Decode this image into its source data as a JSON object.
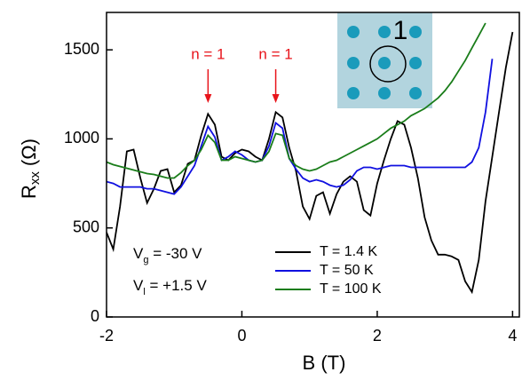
{
  "chart_data": {
    "type": "line",
    "x_label": "B (T)",
    "y_label": "R",
    "y_label_sub": "xx",
    "y_label_unit": "(Ω)",
    "x": [
      -2.0,
      -1.9,
      -1.8,
      -1.7,
      -1.6,
      -1.5,
      -1.4,
      -1.3,
      -1.2,
      -1.1,
      -1.0,
      -0.9,
      -0.8,
      -0.7,
      -0.6,
      -0.5,
      -0.4,
      -0.3,
      -0.2,
      -0.1,
      0.0,
      0.1,
      0.2,
      0.3,
      0.4,
      0.5,
      0.6,
      0.7,
      0.8,
      0.9,
      1.0,
      1.1,
      1.2,
      1.3,
      1.4,
      1.5,
      1.6,
      1.7,
      1.8,
      1.9,
      2.0,
      2.1,
      2.2,
      2.3,
      2.4,
      2.5,
      2.6,
      2.7,
      2.8,
      2.9,
      3.0,
      3.1,
      3.2,
      3.3,
      3.4,
      3.5,
      3.6,
      3.7,
      3.8,
      3.9,
      4.0,
      4.1
    ],
    "series": [
      {
        "name": "T = 1.4 K",
        "color": "#000000",
        "values": [
          475,
          380,
          620,
          930,
          940,
          780,
          640,
          720,
          820,
          830,
          700,
          740,
          860,
          880,
          1020,
          1140,
          1080,
          900,
          880,
          920,
          940,
          930,
          900,
          880,
          1000,
          1150,
          1120,
          950,
          820,
          620,
          550,
          680,
          700,
          580,
          690,
          760,
          790,
          760,
          600,
          570,
          750,
          880,
          1000,
          1100,
          1080,
          950,
          780,
          560,
          430,
          350,
          350,
          340,
          320,
          200,
          140,
          320,
          650,
          900,
          1150,
          1400,
          1600,
          null
        ]
      },
      {
        "name": "T = 50 K",
        "color": "#1010e0",
        "values": [
          760,
          750,
          730,
          730,
          730,
          730,
          720,
          720,
          710,
          700,
          690,
          730,
          790,
          850,
          960,
          1070,
          1010,
          880,
          900,
          930,
          910,
          880,
          870,
          880,
          960,
          1090,
          1060,
          890,
          830,
          780,
          760,
          770,
          760,
          740,
          730,
          740,
          770,
          820,
          840,
          840,
          830,
          840,
          850,
          850,
          850,
          840,
          840,
          840,
          840,
          840,
          840,
          840,
          840,
          840,
          870,
          950,
          1150,
          1450,
          null,
          null,
          null,
          null
        ]
      },
      {
        "name": "T = 100 K",
        "color": "#1a7d1a",
        "values": [
          870,
          855,
          845,
          835,
          825,
          815,
          805,
          800,
          790,
          780,
          780,
          810,
          850,
          880,
          940,
          1020,
          980,
          880,
          880,
          900,
          890,
          880,
          870,
          880,
          930,
          1030,
          1020,
          890,
          850,
          830,
          820,
          830,
          850,
          870,
          880,
          900,
          920,
          940,
          960,
          980,
          1000,
          1030,
          1060,
          1080,
          1100,
          1130,
          1150,
          1170,
          1200,
          1230,
          1270,
          1320,
          1380,
          1440,
          1510,
          1580,
          1650,
          null,
          null,
          null,
          null,
          null
        ]
      }
    ],
    "xlim": [
      -2,
      4.1
    ],
    "ylim": [
      0,
      1710
    ],
    "xticks": [
      -2,
      0,
      2,
      4
    ],
    "yticks": [
      0,
      500,
      1000,
      1500
    ],
    "legend_loc": "lower center",
    "annotations": [
      {
        "text": "n = 1",
        "x": -0.5
      },
      {
        "text": "n = 1",
        "x": 0.5
      }
    ],
    "conditions": [
      {
        "symbol": "V",
        "sub": "g",
        "rest": " = -30 V"
      },
      {
        "symbol": "V",
        "sub": "l",
        "rest": " = +1.5 V"
      }
    ],
    "inset_label": "1"
  }
}
